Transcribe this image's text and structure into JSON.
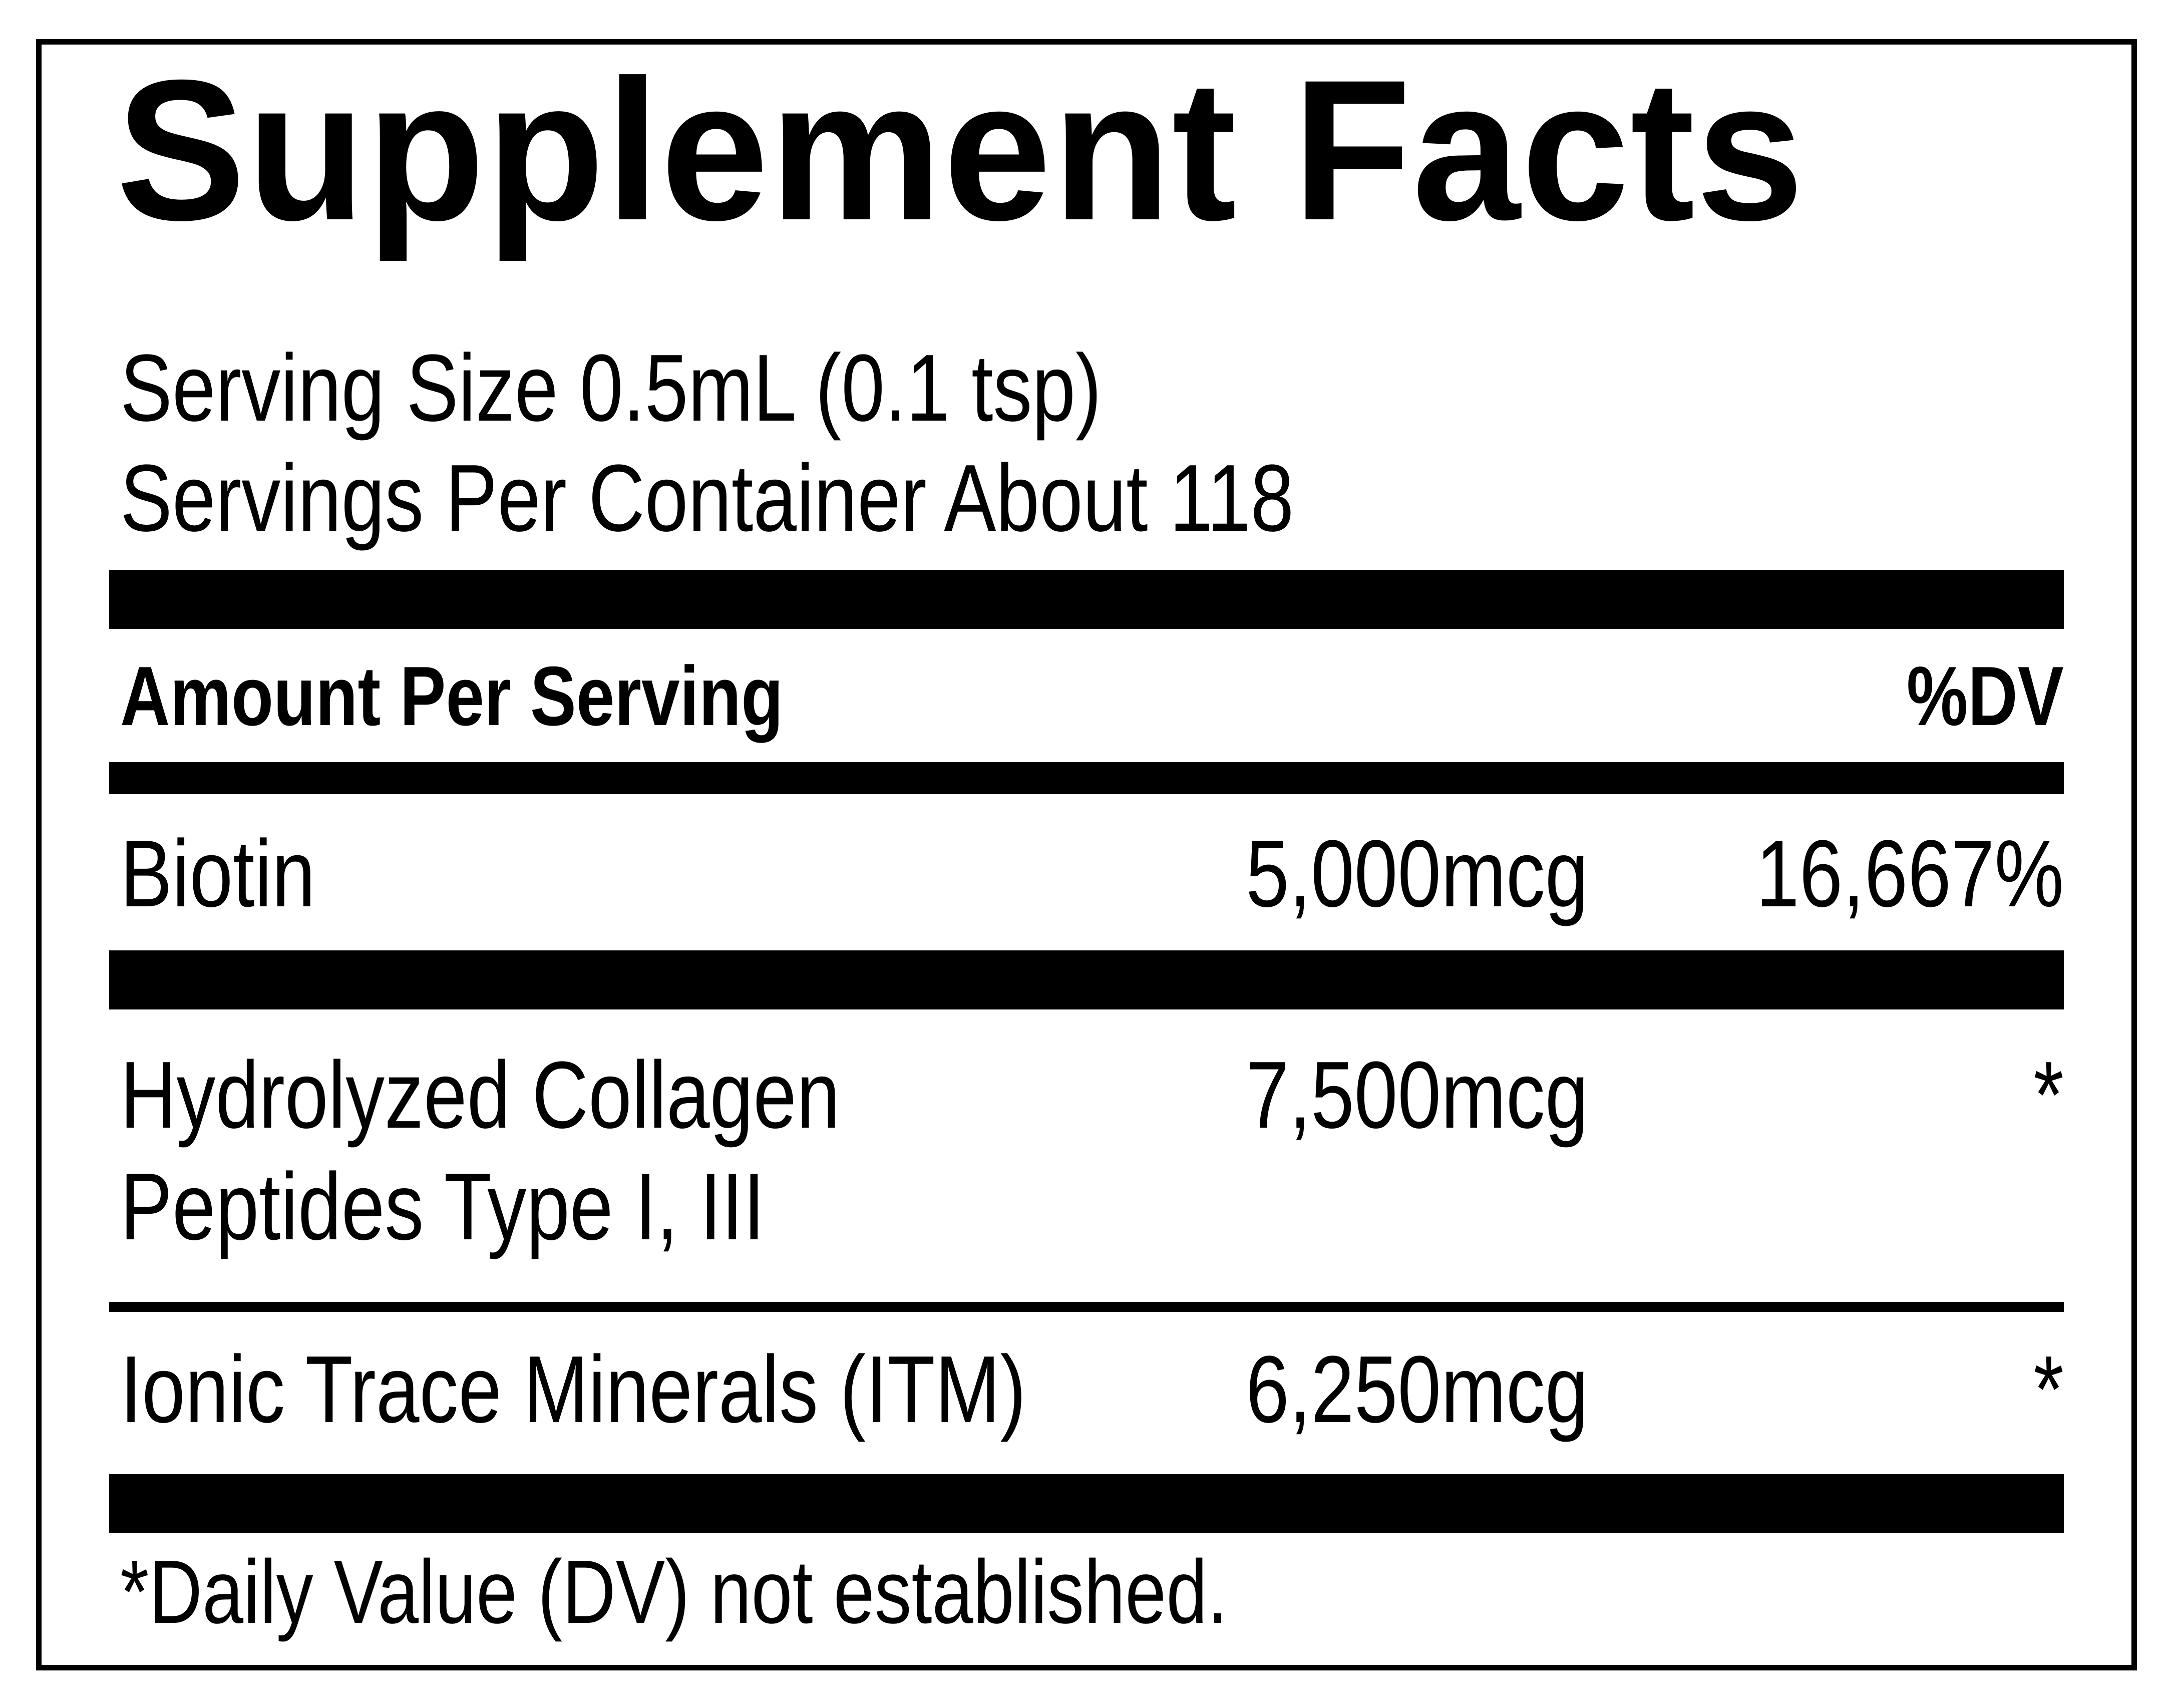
{
  "title": "Supplement Facts",
  "serving_size": "Serving Size 0.5mL (0.1 tsp)",
  "servings_per_container": "Servings Per Container About 118",
  "header": {
    "amount_label": "Amount Per Serving",
    "dv_label": "%DV"
  },
  "rows": [
    {
      "name": "Biotin",
      "amount": "5,000mcg",
      "dv": "16,667%"
    },
    {
      "name_line1": "Hydrolyzed Collagen",
      "name_line2": "Peptides Type I, III",
      "amount": "7,500mcg",
      "dv": "*"
    },
    {
      "name": "Ionic Trace Minerals (ITM)",
      "amount": "6,250mcg",
      "dv": "*"
    }
  ],
  "footnote": "*Daily Value (DV) not established."
}
